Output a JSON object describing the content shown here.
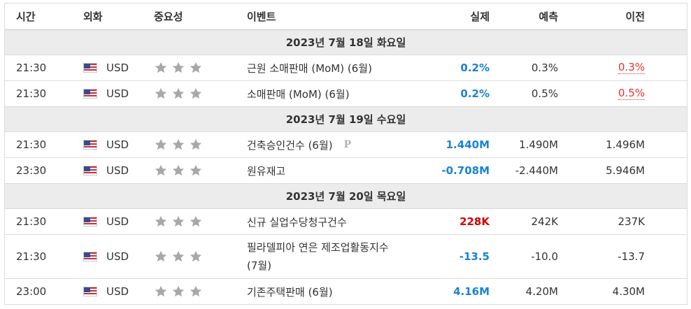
{
  "header": {
    "time": "시간",
    "currency": "외화",
    "importance": "중요성",
    "event": "이벤트",
    "actual": "실제",
    "forecast": "예측",
    "previous": "이전"
  },
  "groups": [
    {
      "date": "2023년 7월 18일 화요일",
      "rows": [
        {
          "time": "21:30",
          "currency": "USD",
          "event": "근원 소매판매 (MoM) (6월)",
          "actual": "0.2%",
          "forecast": "0.3%",
          "previous": "0.3%"
        },
        {
          "time": "21:30",
          "currency": "USD",
          "event": "소매판매 (MoM) (6월)",
          "actual": "0.2%",
          "forecast": "0.5%",
          "previous": "0.5%"
        }
      ]
    },
    {
      "date": "2023년 7월 19일 수요일",
      "rows": [
        {
          "time": "21:30",
          "currency": "USD",
          "event": "건축승인건수 (6월)",
          "event_badge": "P",
          "actual": "1.440M",
          "forecast": "1.490M",
          "previous": "1.496M"
        },
        {
          "time": "23:30",
          "currency": "USD",
          "event": "원유재고",
          "actual": "-0.708M",
          "forecast": "-2.440M",
          "previous": "5.946M"
        }
      ]
    },
    {
      "date": "2023년 7월 20일 목요일",
      "rows": [
        {
          "time": "21:30",
          "currency": "USD",
          "event": "신규 실업수당청구건수",
          "actual": "228K",
          "forecast": "242K",
          "previous": "237K"
        },
        {
          "time": "21:30",
          "currency": "USD",
          "event_line1": "필라델피아 연은 제조업활동지수",
          "event_line2": "(7월)",
          "actual": "-13.5",
          "forecast": "-10.0",
          "previous": "-13.7"
        },
        {
          "time": "23:00",
          "currency": "USD",
          "event": "기존주택판매 (6월)",
          "actual": "4.16M",
          "forecast": "4.20M",
          "previous": "4.30M"
        }
      ]
    }
  ],
  "icons": {
    "flag": "us-flag-icon",
    "star": "star-icon",
    "badge": "preliminary-icon"
  },
  "colors": {
    "actual_blue": "#1a82d4",
    "actual_red": "#d50000",
    "previous_red": "#dd3333",
    "star_gray": "#a8a8a8",
    "date_band": "#ececec"
  }
}
